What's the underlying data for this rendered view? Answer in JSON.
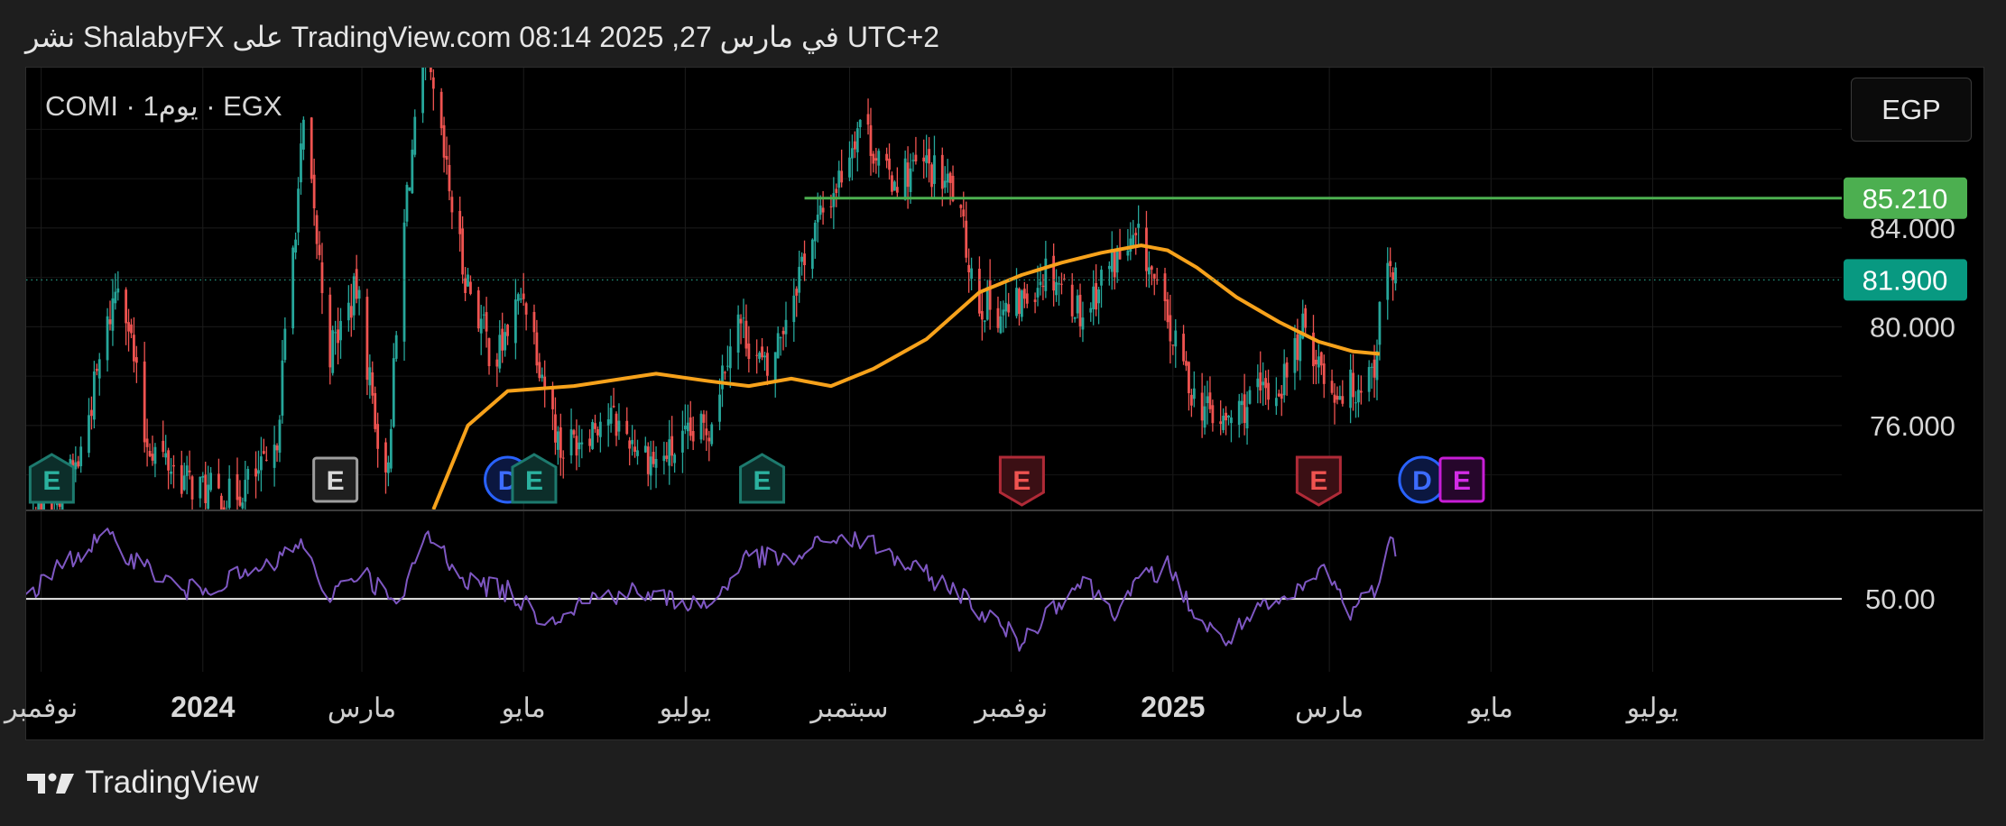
{
  "header": {
    "publish_line": "نشر ShalabyFX على TradingView.com في مارس 27, 2025 08:14 UTC+2"
  },
  "symbol_label": "COMI · 1يوم · EGX",
  "currency_button": "EGP",
  "footer": {
    "brand": "TradingView"
  },
  "colors": {
    "up": "#26a69a",
    "down": "#ef5350",
    "ma": "#f7a21b",
    "resistance": "#4caf50",
    "rsi": "#7e57c2",
    "last_price_badge": "#089981",
    "resistance_badge": "#4caf50"
  },
  "chart_data": [
    {
      "type": "candlestick",
      "title": "",
      "x_tick_labels": [
        "نوفمبر",
        "2024",
        "مارس",
        "مايو",
        "يوليو",
        "سبتمبر",
        "نوفمبر",
        "2025",
        "مارس",
        "مايو",
        "يوليو"
      ],
      "y_tick_labels": [
        "84.000",
        "80.000",
        "76.000"
      ],
      "ylim": [
        72.6,
        90.5
      ],
      "grid": true,
      "price_close_path": [
        {
          "date": "2023-10-26",
          "close": 71.5
        },
        {
          "date": "2023-11-15",
          "close": 74.5
        },
        {
          "date": "2023-12-01",
          "close": 82.5
        },
        {
          "date": "2023-12-10",
          "close": 75.5
        },
        {
          "date": "2023-12-25",
          "close": 73.8
        },
        {
          "date": "2024-01-10",
          "close": 73.0
        },
        {
          "date": "2024-01-28",
          "close": 74.5
        },
        {
          "date": "2024-02-08",
          "close": 88.0
        },
        {
          "date": "2024-02-18",
          "close": 79.0
        },
        {
          "date": "2024-02-28",
          "close": 81.5
        },
        {
          "date": "2024-03-10",
          "close": 73.5
        },
        {
          "date": "2024-03-18",
          "close": 85.5
        },
        {
          "date": "2024-03-25",
          "close": 91.0
        },
        {
          "date": "2024-04-08",
          "close": 82.5
        },
        {
          "date": "2024-04-20",
          "close": 78.5
        },
        {
          "date": "2024-05-01",
          "close": 81.5
        },
        {
          "date": "2024-05-15",
          "close": 75.0
        },
        {
          "date": "2024-06-01",
          "close": 76.5
        },
        {
          "date": "2024-06-20",
          "close": 74.5
        },
        {
          "date": "2024-07-10",
          "close": 76.0
        },
        {
          "date": "2024-07-20",
          "close": 80.5
        },
        {
          "date": "2024-08-01",
          "close": 78.0
        },
        {
          "date": "2024-08-15",
          "close": 83.0
        },
        {
          "date": "2024-08-28",
          "close": 86.0
        },
        {
          "date": "2024-09-05",
          "close": 88.5
        },
        {
          "date": "2024-09-15",
          "close": 86.0
        },
        {
          "date": "2024-09-30",
          "close": 86.5
        },
        {
          "date": "2024-10-10",
          "close": 85.5
        },
        {
          "date": "2024-10-20",
          "close": 81.0
        },
        {
          "date": "2024-11-01",
          "close": 80.5
        },
        {
          "date": "2024-11-15",
          "close": 82.5
        },
        {
          "date": "2024-11-28",
          "close": 80.5
        },
        {
          "date": "2024-12-08",
          "close": 82.5
        },
        {
          "date": "2024-12-20",
          "close": 83.5
        },
        {
          "date": "2024-12-30",
          "close": 80.0
        },
        {
          "date": "2025-01-10",
          "close": 77.0
        },
        {
          "date": "2025-01-20",
          "close": 76.0
        },
        {
          "date": "2025-01-30",
          "close": 77.0
        },
        {
          "date": "2025-02-10",
          "close": 77.5
        },
        {
          "date": "2025-02-20",
          "close": 80.0
        },
        {
          "date": "2025-03-01",
          "close": 77.5
        },
        {
          "date": "2025-03-10",
          "close": 77.5
        },
        {
          "date": "2025-03-18",
          "close": 78.5
        },
        {
          "date": "2025-03-22",
          "close": 82.5
        },
        {
          "date": "2025-03-26",
          "close": 81.9
        }
      ],
      "moving_average": [
        {
          "date": "2024-03-28",
          "value": 72.6
        },
        {
          "date": "2024-04-10",
          "value": 76.0
        },
        {
          "date": "2024-04-25",
          "value": 77.4
        },
        {
          "date": "2024-05-20",
          "value": 77.6
        },
        {
          "date": "2024-06-20",
          "value": 78.1
        },
        {
          "date": "2024-07-10",
          "value": 77.8
        },
        {
          "date": "2024-07-25",
          "value": 77.6
        },
        {
          "date": "2024-08-10",
          "value": 77.9
        },
        {
          "date": "2024-08-25",
          "value": 77.6
        },
        {
          "date": "2024-09-10",
          "value": 78.3
        },
        {
          "date": "2024-09-30",
          "value": 79.5
        },
        {
          "date": "2024-10-20",
          "value": 81.4
        },
        {
          "date": "2024-11-05",
          "value": 82.1
        },
        {
          "date": "2024-11-20",
          "value": 82.6
        },
        {
          "date": "2024-12-05",
          "value": 83.0
        },
        {
          "date": "2024-12-20",
          "value": 83.3
        },
        {
          "date": "2024-12-30",
          "value": 83.1
        },
        {
          "date": "2025-01-10",
          "value": 82.4
        },
        {
          "date": "2025-01-25",
          "value": 81.2
        },
        {
          "date": "2025-02-10",
          "value": 80.2
        },
        {
          "date": "2025-02-25",
          "value": 79.4
        },
        {
          "date": "2025-03-10",
          "value": 79.0
        },
        {
          "date": "2025-03-20",
          "value": 78.9
        }
      ],
      "horizontal_levels": [
        {
          "price": 85.21,
          "label": "85.210",
          "from_date": "2024-08-15"
        },
        {
          "price": 81.9,
          "label": "81.900",
          "dotted": true
        }
      ],
      "event_markers": [
        {
          "date": "2023-11-05",
          "letter": "E",
          "style": "up"
        },
        {
          "date": "2024-02-20",
          "letter": "E",
          "style": "neutral"
        },
        {
          "date": "2024-04-25",
          "letter": "D",
          "style": "dividend"
        },
        {
          "date": "2024-05-05",
          "letter": "E",
          "style": "up"
        },
        {
          "date": "2024-07-30",
          "letter": "E",
          "style": "up"
        },
        {
          "date": "2024-11-05",
          "letter": "E",
          "style": "down"
        },
        {
          "date": "2025-02-25",
          "letter": "E",
          "style": "down"
        },
        {
          "date": "2025-04-05",
          "letter": "D",
          "style": "dividend"
        },
        {
          "date": "2025-04-20",
          "letter": "E",
          "style": "future"
        }
      ]
    },
    {
      "type": "line",
      "title": "",
      "y_tick_labels": [
        "50.00"
      ],
      "reference_line": 50,
      "ylim": [
        30,
        74
      ],
      "series": [
        {
          "values": [
            {
              "date": "2023-10-26",
              "value": 50
            },
            {
              "date": "2023-11-10",
              "value": 60
            },
            {
              "date": "2023-11-25",
              "value": 67
            },
            {
              "date": "2023-12-10",
              "value": 59
            },
            {
              "date": "2023-12-25",
              "value": 52
            },
            {
              "date": "2024-01-10",
              "value": 55
            },
            {
              "date": "2024-01-25",
              "value": 58
            },
            {
              "date": "2024-02-08",
              "value": 66
            },
            {
              "date": "2024-02-15",
              "value": 50
            },
            {
              "date": "2024-03-01",
              "value": 58
            },
            {
              "date": "2024-03-15",
              "value": 47
            },
            {
              "date": "2024-03-25",
              "value": 68
            },
            {
              "date": "2024-04-10",
              "value": 55
            },
            {
              "date": "2024-04-25",
              "value": 52
            },
            {
              "date": "2024-05-10",
              "value": 44
            },
            {
              "date": "2024-05-25",
              "value": 50
            },
            {
              "date": "2024-06-10",
              "value": 52
            },
            {
              "date": "2024-06-25",
              "value": 50
            },
            {
              "date": "2024-07-10",
              "value": 48
            },
            {
              "date": "2024-07-25",
              "value": 62
            },
            {
              "date": "2024-08-10",
              "value": 60
            },
            {
              "date": "2024-08-25",
              "value": 67
            },
            {
              "date": "2024-09-10",
              "value": 65
            },
            {
              "date": "2024-09-25",
              "value": 58
            },
            {
              "date": "2024-10-10",
              "value": 53
            },
            {
              "date": "2024-10-25",
              "value": 44
            },
            {
              "date": "2024-11-05",
              "value": 38
            },
            {
              "date": "2024-11-15",
              "value": 47
            },
            {
              "date": "2024-11-28",
              "value": 55
            },
            {
              "date": "2024-12-10",
              "value": 47
            },
            {
              "date": "2024-12-20",
              "value": 55
            },
            {
              "date": "2024-12-30",
              "value": 59
            },
            {
              "date": "2025-01-10",
              "value": 45
            },
            {
              "date": "2025-01-20",
              "value": 38
            },
            {
              "date": "2025-02-01",
              "value": 46
            },
            {
              "date": "2025-02-15",
              "value": 50
            },
            {
              "date": "2025-02-28",
              "value": 59
            },
            {
              "date": "2025-03-08",
              "value": 46
            },
            {
              "date": "2025-03-15",
              "value": 51
            },
            {
              "date": "2025-03-20",
              "value": 55
            },
            {
              "date": "2025-03-24",
              "value": 65
            },
            {
              "date": "2025-03-26",
              "value": 64
            }
          ]
        }
      ]
    }
  ]
}
